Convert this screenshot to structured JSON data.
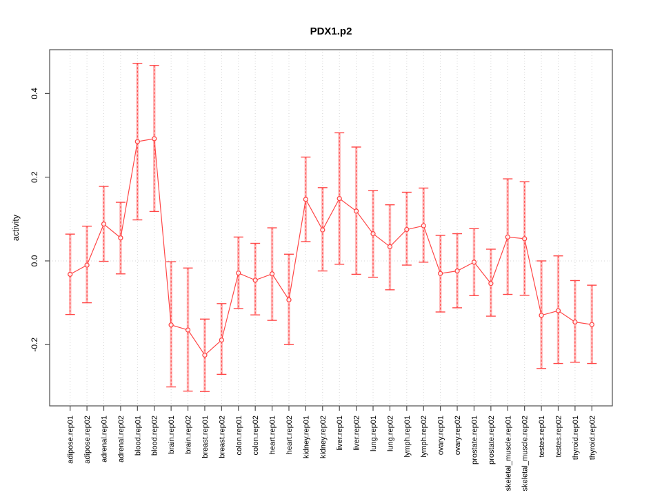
{
  "chart_data": {
    "type": "line",
    "title": "PDX1.p2",
    "ylabel": "activity",
    "xlabel": "",
    "ylim": [
      -0.3463,
      0.5045
    ],
    "yticks": [
      -0.2,
      0.0,
      0.2,
      0.4
    ],
    "ytick_labels": [
      "-0.2",
      "0.0",
      "0.2",
      "0.4"
    ],
    "grid": {
      "vertical_dotted_per_category": true,
      "zero_line_dotted": true
    },
    "legend": false,
    "marker": "open-circle",
    "categories": [
      "adipose.rep01",
      "adipose.rep02",
      "adrenal.rep01",
      "adrenal.rep02",
      "blood.rep01",
      "blood.rep02",
      "brain.rep01",
      "brain.rep02",
      "breast.rep01",
      "breast.rep02",
      "colon.rep01",
      "colon.rep02",
      "heart.rep01",
      "heart.rep02",
      "kidney.rep01",
      "kidney.rep02",
      "liver.rep01",
      "liver.rep02",
      "lung.rep01",
      "lung.rep02",
      "lymph.rep01",
      "lymph.rep02",
      "ovary.rep01",
      "ovary.rep02",
      "prostate.rep01",
      "prostate.rep02",
      "skeletal_muscle.rep01",
      "skeletal_muscle.rep02",
      "testes.rep01",
      "testes.rep02",
      "thyroid.rep01",
      "thyroid.rep02"
    ],
    "series": [
      {
        "name": "PDX1.p2 activity",
        "values": [
          -0.032,
          -0.01,
          0.088,
          0.055,
          0.285,
          0.292,
          -0.153,
          -0.165,
          -0.225,
          -0.189,
          -0.029,
          -0.046,
          -0.031,
          -0.093,
          0.147,
          0.074,
          0.149,
          0.119,
          0.065,
          0.034,
          0.075,
          0.084,
          -0.03,
          -0.024,
          -0.003,
          -0.054,
          0.057,
          0.053,
          -0.13,
          -0.119,
          -0.146,
          -0.152
        ],
        "lower": [
          -0.128,
          -0.1,
          -0.001,
          -0.031,
          0.098,
          0.118,
          -0.301,
          -0.311,
          -0.312,
          -0.271,
          -0.114,
          -0.129,
          -0.142,
          -0.2,
          0.046,
          -0.024,
          -0.008,
          -0.032,
          -0.039,
          -0.069,
          -0.01,
          -0.003,
          -0.122,
          -0.112,
          -0.083,
          -0.132,
          -0.08,
          -0.082,
          -0.257,
          -0.245,
          -0.242,
          -0.245
        ],
        "upper": [
          0.064,
          0.083,
          0.178,
          0.14,
          0.472,
          0.467,
          -0.002,
          -0.017,
          -0.139,
          -0.102,
          0.057,
          0.042,
          0.079,
          0.016,
          0.248,
          0.175,
          0.306,
          0.272,
          0.168,
          0.134,
          0.164,
          0.174,
          0.061,
          0.065,
          0.077,
          0.028,
          0.196,
          0.189,
          0.0,
          0.012,
          -0.047,
          -0.058
        ]
      }
    ],
    "colors": {
      "point": "#ff4747",
      "band": "#ffb8b8",
      "grid": "#d4d4d4",
      "zero_line": "#d4d4d4",
      "frame": "#4d4d4d",
      "text": "#000000"
    }
  }
}
